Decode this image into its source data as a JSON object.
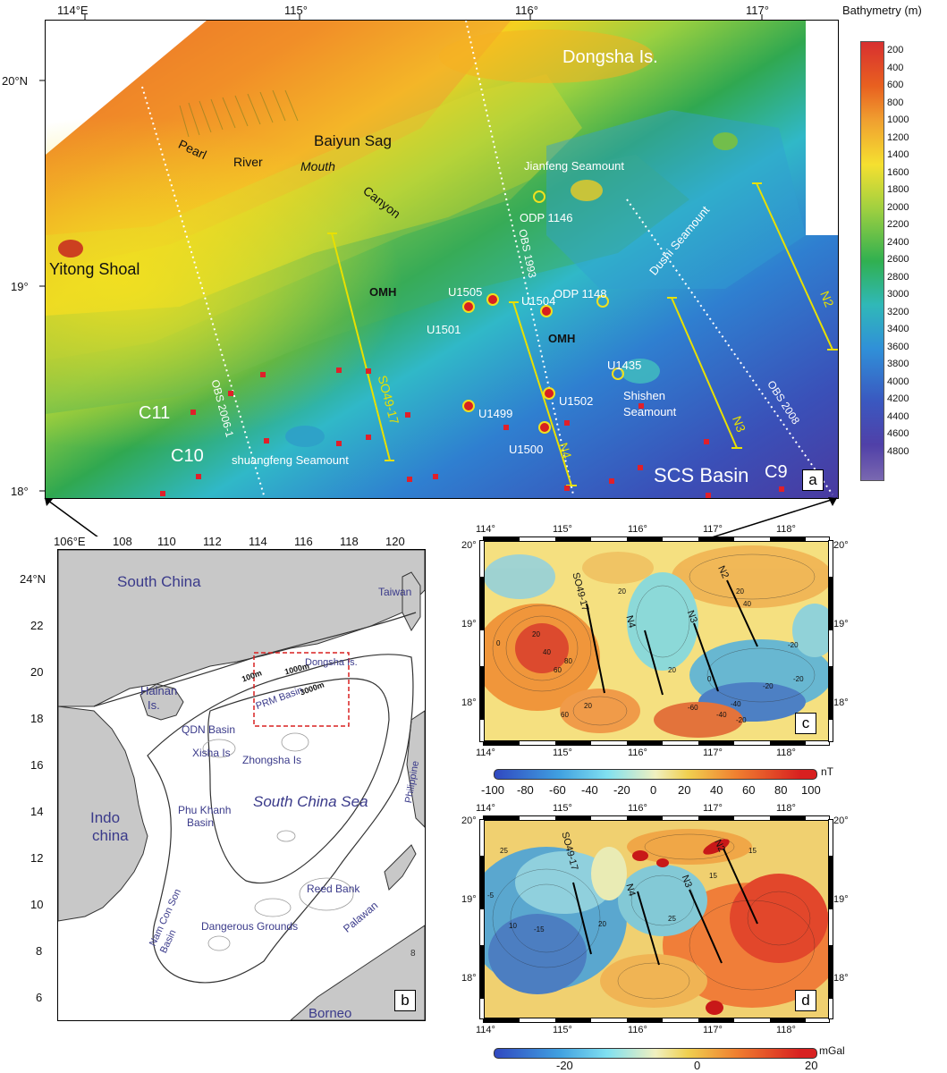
{
  "panel_a": {
    "tag": "a",
    "lon_ticks": [
      "114°E",
      "115°",
      "116°",
      "117°"
    ],
    "lat_ticks": [
      "20°N",
      "19°",
      "18°"
    ],
    "places": {
      "dongsha": "Dongsha Is.",
      "baiyun": "Baiyun Sag",
      "jianfeng": "Jianfeng Seamount",
      "pearl": "Pearl",
      "river": "River",
      "mouth": "Mouth",
      "canyon": "Canyon",
      "yitong": "Yitong Shoal",
      "dushi": "Dushi Seamount",
      "shishen1": "Shishen",
      "shishen2": "Seamount",
      "shuangfeng": "shuangfeng Seamount",
      "scs_basin": "SCS Basin",
      "c9": "C9",
      "c10": "C10",
      "c11": "C11",
      "omh1": "OMH",
      "omh2": "OMH"
    },
    "sites": {
      "odp1146": "ODP 1146",
      "odp1148": "ODP 1148",
      "u1505": "U1505",
      "u1504": "U1504",
      "u1501": "U1501",
      "u1435": "U1435",
      "u1502": "U1502",
      "u1499": "U1499",
      "u1500": "U1500"
    },
    "lines": {
      "obs2006": "OBS 2006-1",
      "obs1993": "OBS 1993",
      "obs2008": "OBS 2008",
      "so4917": "SO49-17",
      "n4": "N4",
      "n3": "N3",
      "n2": "N2"
    }
  },
  "colorbar": {
    "title": "Bathymetry (m)",
    "ticks": [
      "200",
      "400",
      "600",
      "800",
      "1000",
      "1200",
      "1400",
      "1600",
      "1800",
      "2000",
      "2200",
      "2400",
      "2600",
      "2800",
      "3000",
      "3200",
      "3400",
      "3600",
      "3800",
      "4000",
      "4200",
      "4400",
      "4600",
      "4800"
    ]
  },
  "panel_b": {
    "tag": "b",
    "lon_ticks": [
      "106°E",
      "108",
      "110",
      "112",
      "114",
      "116",
      "118",
      "120"
    ],
    "lat_ticks": [
      "24°N",
      "22",
      "20",
      "18",
      "16",
      "14",
      "12",
      "10",
      "8",
      "6"
    ],
    "labels": {
      "south_china": "South China",
      "taiwan": "Taiwan",
      "hainan1": "Hainan",
      "hainan2": "Is.",
      "dongsha": "Dongsha Is.",
      "prm": "PRM Basin",
      "c100": "100m",
      "c1000": "1000m",
      "c3000": "3000m",
      "qdn": "QDN Basin",
      "xisha": "Xisha Is",
      "zhongsha": "Zhongsha Is",
      "scs": "South China Sea",
      "philippine": "Philippine",
      "indo1": "Indo",
      "indo2": "china",
      "phukhanh1": "Phu Khanh",
      "phukhanh2": "Basin",
      "reedbank": "Reed Bank",
      "dangerous": "Dangerous Grounds",
      "namconson1": "Nam Con Son",
      "namconson2": "Basin",
      "palawan": "Palawan",
      "borneo": "Borneo",
      "eight": "8"
    }
  },
  "panel_c": {
    "tag": "c",
    "lon_ticks": [
      "114°",
      "115°",
      "116°",
      "117°",
      "118°"
    ],
    "lat_ticks": [
      "20°",
      "19°",
      "18°"
    ],
    "lines": {
      "so4917": "SO49-17",
      "n4": "N4",
      "n3": "N3",
      "n2": "N2"
    },
    "contour_labels": [
      "0",
      "20",
      "40",
      "60",
      "80",
      "20",
      "20",
      "40",
      "20",
      "0",
      "-20",
      "-40",
      "-60",
      "-20",
      "-20",
      "-40",
      "-20",
      "60",
      "20"
    ],
    "colorbar_ticks": [
      "-100",
      "-80",
      "-60",
      "-40",
      "-20",
      "0",
      "20",
      "40",
      "60",
      "80",
      "100"
    ],
    "unit": "nT"
  },
  "panel_d": {
    "tag": "d",
    "lon_ticks": [
      "114°",
      "115°",
      "116°",
      "117°",
      "118°"
    ],
    "lat_ticks": [
      "20°",
      "19°",
      "18°"
    ],
    "lines": {
      "so4917": "SO49-17",
      "n4": "N4",
      "n3": "N3",
      "n2": "N2"
    },
    "contour_labels": [
      "25",
      "15",
      "25",
      "-5",
      "10",
      "-15",
      "20",
      "15"
    ],
    "colorbar_ticks": [
      "-20",
      "0",
      "20"
    ],
    "unit": "mGal"
  },
  "colors": {
    "line_yellow": "#e8e000",
    "site_red": "#e02020",
    "square_red": "#e0202a",
    "label_blue": "#3a3a8a",
    "land_gray": "#c8c8c8"
  }
}
